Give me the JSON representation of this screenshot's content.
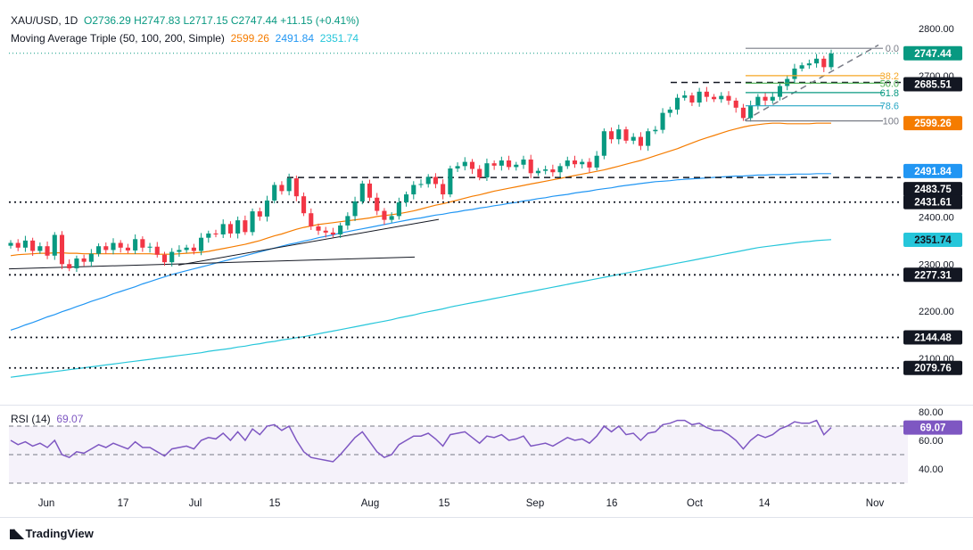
{
  "legend": {
    "symbol": "XAU/USD, 1D",
    "open": "O2736.29",
    "high": "H2747.83",
    "low": "L2717.15",
    "close": "C2747.44",
    "change": "+11.15 (+0.41%)",
    "ma_title": "Moving Average Triple (50, 100, 200, Simple)",
    "ma50": "2599.26",
    "ma100": "2491.84",
    "ma200": "2351.74"
  },
  "rsi_legend": {
    "title": "RSI (14)",
    "value": "69.07"
  },
  "colors": {
    "up": "#089981",
    "down": "#f23645",
    "ma50": "#f57c00",
    "ma100": "#2196f3",
    "ma200": "#26c6da",
    "rsi": "#7e57c2"
  },
  "branding": {
    "name": "TradingView"
  },
  "chart_data": {
    "type": "candlestick",
    "x_ticks": [
      "Jun",
      "17",
      "Jul",
      "15",
      "Aug",
      "15",
      "Sep",
      "16",
      "Oct",
      "14",
      "Nov"
    ],
    "y_ticks": [
      "2100.00",
      "2200.00",
      "2300.00",
      "2400.00",
      "2500.00",
      "2600.00",
      "2700.00",
      "2800.00"
    ],
    "ylim": [
      2060,
      2820
    ],
    "price_labels": [
      {
        "value": "2747.44",
        "price": 2747.44,
        "kind": "last"
      },
      {
        "value": "2685.51",
        "price": 2685.51,
        "kind": "dark"
      },
      {
        "value": "2599.26",
        "price": 2599.26,
        "kind": "ma50"
      },
      {
        "value": "2491.84",
        "price": 2491.84,
        "kind": "ma100"
      },
      {
        "value": "2483.75",
        "price": 2483.75,
        "kind": "dark"
      },
      {
        "value": "2431.61",
        "price": 2431.61,
        "kind": "dark"
      },
      {
        "value": "2351.74",
        "price": 2351.74,
        "kind": "ma200"
      },
      {
        "value": "2277.31",
        "price": 2277.31,
        "kind": "dark"
      },
      {
        "value": "2144.48",
        "price": 2144.48,
        "kind": "dark"
      },
      {
        "value": "2079.76",
        "price": 2079.76,
        "kind": "dark"
      }
    ],
    "fib_labels": [
      {
        "label": "0.0",
        "price": 2758,
        "color": "#787b86"
      },
      {
        "label": "38.2",
        "price": 2700,
        "color": "#f5a623"
      },
      {
        "label": "50.0",
        "price": 2684,
        "color": "#4caf50"
      },
      {
        "label": "61.8",
        "price": 2664,
        "color": "#089981"
      },
      {
        "label": "78.6",
        "price": 2636,
        "color": "#26a6c4"
      },
      {
        "label": "100",
        "price": 2604,
        "color": "#787b86"
      }
    ],
    "horizontal_levels": [
      2685.51,
      2483.75,
      2431.61,
      2277.31,
      2144.48,
      2079.76
    ],
    "rsi_ticks": [
      "40.00",
      "60.00",
      "80.00"
    ],
    "rsi_ylim": [
      20,
      90
    ],
    "rsi_levels": [
      30,
      50,
      70
    ],
    "closes": [
      2345,
      2335,
      2350,
      2328,
      2338,
      2318,
      2362,
      2300,
      2291,
      2312,
      2305,
      2322,
      2338,
      2330,
      2345,
      2335,
      2329,
      2353,
      2335,
      2337,
      2320,
      2304,
      2326,
      2330,
      2335,
      2328,
      2356,
      2365,
      2363,
      2385,
      2365,
      2393,
      2368,
      2412,
      2401,
      2435,
      2468,
      2455,
      2482,
      2444,
      2408,
      2380,
      2371,
      2367,
      2363,
      2382,
      2402,
      2433,
      2471,
      2441,
      2413,
      2394,
      2402,
      2431,
      2448,
      2468,
      2470,
      2485,
      2470,
      2448,
      2503,
      2508,
      2517,
      2502,
      2484,
      2514,
      2509,
      2520,
      2506,
      2511,
      2522,
      2493,
      2498,
      2501,
      2495,
      2508,
      2520,
      2512,
      2517,
      2505,
      2530,
      2582,
      2565,
      2586,
      2562,
      2570,
      2551,
      2582,
      2585,
      2621,
      2628,
      2653,
      2658,
      2643,
      2666,
      2655,
      2650,
      2657,
      2647,
      2632,
      2610,
      2637,
      2655,
      2647,
      2655,
      2678,
      2693,
      2715,
      2722,
      2726,
      2736,
      2718,
      2747
    ],
    "ma50": [
      2318,
      2320,
      2321,
      2322,
      2323,
      2323,
      2324,
      2324,
      2323,
      2323,
      2322,
      2322,
      2322,
      2322,
      2322,
      2322,
      2322,
      2322,
      2322,
      2322,
      2321,
      2321,
      2321,
      2322,
      2323,
      2324,
      2325,
      2327,
      2330,
      2333,
      2336,
      2339,
      2342,
      2346,
      2350,
      2355,
      2360,
      2364,
      2369,
      2374,
      2378,
      2381,
      2384,
      2386,
      2388,
      2390,
      2392,
      2394,
      2396,
      2398,
      2401,
      2403,
      2405,
      2407,
      2410,
      2413,
      2417,
      2421,
      2425,
      2428,
      2432,
      2436,
      2440,
      2444,
      2447,
      2451,
      2455,
      2458,
      2461,
      2464,
      2467,
      2470,
      2473,
      2476,
      2479,
      2482,
      2485,
      2488,
      2491,
      2494,
      2497,
      2500,
      2504,
      2508,
      2512,
      2516,
      2520,
      2525,
      2530,
      2535,
      2540,
      2545,
      2551,
      2557,
      2563,
      2568,
      2573,
      2578,
      2583,
      2587,
      2591,
      2594,
      2596,
      2598,
      2599,
      2599,
      2598,
      2598,
      2598,
      2598,
      2599,
      2599,
      2599
    ],
    "ma100": [
      2160,
      2165,
      2171,
      2176,
      2182,
      2188,
      2193,
      2199,
      2204,
      2210,
      2215,
      2221,
      2226,
      2231,
      2237,
      2242,
      2247,
      2252,
      2258,
      2263,
      2268,
      2273,
      2278,
      2282,
      2286,
      2290,
      2294,
      2298,
      2302,
      2306,
      2310,
      2314,
      2318,
      2322,
      2326,
      2330,
      2334,
      2338,
      2342,
      2345,
      2349,
      2352,
      2356,
      2359,
      2362,
      2366,
      2369,
      2372,
      2375,
      2378,
      2381,
      2384,
      2387,
      2390,
      2393,
      2396,
      2398,
      2401,
      2404,
      2406,
      2409,
      2411,
      2414,
      2416,
      2419,
      2421,
      2424,
      2426,
      2429,
      2431,
      2434,
      2436,
      2439,
      2441,
      2444,
      2446,
      2448,
      2451,
      2453,
      2455,
      2458,
      2460,
      2462,
      2465,
      2467,
      2469,
      2471,
      2473,
      2475,
      2476,
      2477,
      2479,
      2480,
      2481,
      2482,
      2483,
      2484,
      2485,
      2486,
      2487,
      2487,
      2488,
      2489,
      2489,
      2490,
      2490,
      2490,
      2491,
      2491,
      2491,
      2492,
      2492,
      2492
    ],
    "ma200": [
      2060,
      2062,
      2064,
      2066,
      2068,
      2070,
      2072,
      2074,
      2076,
      2078,
      2080,
      2082,
      2084,
      2086,
      2088,
      2090,
      2092,
      2094,
      2096,
      2098,
      2100,
      2102,
      2104,
      2106,
      2108,
      2110,
      2112,
      2115,
      2117,
      2119,
      2121,
      2124,
      2126,
      2129,
      2131,
      2134,
      2136,
      2139,
      2141,
      2144,
      2146,
      2149,
      2152,
      2155,
      2158,
      2161,
      2164,
      2167,
      2170,
      2173,
      2176,
      2179,
      2182,
      2186,
      2189,
      2192,
      2196,
      2199,
      2202,
      2205,
      2209,
      2212,
      2215,
      2218,
      2221,
      2224,
      2227,
      2230,
      2233,
      2236,
      2239,
      2242,
      2245,
      2248,
      2251,
      2254,
      2257,
      2260,
      2263,
      2266,
      2269,
      2272,
      2275,
      2278,
      2281,
      2284,
      2287,
      2290,
      2293,
      2296,
      2299,
      2302,
      2305,
      2308,
      2311,
      2314,
      2317,
      2320,
      2323,
      2326,
      2329,
      2332,
      2335,
      2337,
      2339,
      2341,
      2343,
      2345,
      2347,
      2348,
      2350,
      2351,
      2352
    ],
    "rsi": [
      60,
      57,
      59,
      56,
      58,
      55,
      60,
      50,
      48,
      52,
      51,
      54,
      57,
      55,
      58,
      56,
      54,
      59,
      55,
      55,
      52,
      49,
      54,
      55,
      56,
      54,
      60,
      62,
      61,
      65,
      60,
      66,
      60,
      68,
      64,
      70,
      71,
      67,
      70,
      60,
      52,
      48,
      47,
      46,
      45,
      50,
      56,
      62,
      66,
      59,
      52,
      48,
      50,
      57,
      60,
      63,
      63,
      65,
      61,
      56,
      64,
      65,
      66,
      62,
      58,
      63,
      62,
      64,
      60,
      61,
      63,
      56,
      57,
      58,
      56,
      59,
      62,
      60,
      61,
      58,
      63,
      70,
      66,
      70,
      64,
      65,
      60,
      65,
      66,
      71,
      72,
      74,
      74,
      71,
      72,
      69,
      67,
      67,
      64,
      60,
      54,
      60,
      64,
      62,
      64,
      68,
      70,
      73,
      72,
      72,
      74,
      64,
      69
    ]
  }
}
